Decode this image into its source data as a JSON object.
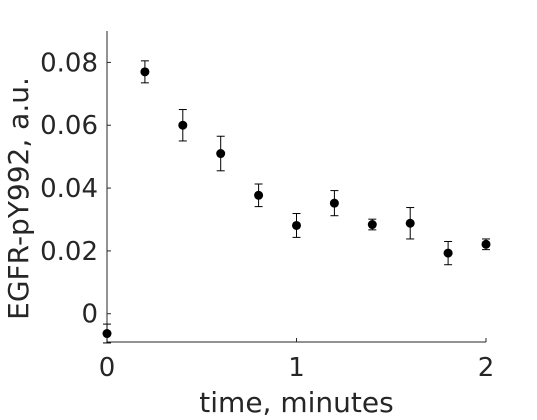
{
  "chart_data": {
    "type": "scatter",
    "title": "",
    "xlabel": "time, minutes",
    "ylabel": "EGFR-pY992, a.u.",
    "xlim": [
      0,
      2
    ],
    "ylim": [
      -0.009,
      0.09
    ],
    "x_ticks": [
      0,
      1,
      2
    ],
    "x_tick_labels": [
      "0",
      "1",
      "2"
    ],
    "y_ticks": [
      0,
      0.02,
      0.04,
      0.06,
      0.08
    ],
    "y_tick_labels": [
      "0",
      "0.02",
      "0.04",
      "0.06",
      "0.08"
    ],
    "grid": false,
    "legend": false,
    "marker_color": "#000000",
    "axis_color": "#262626",
    "series": [
      {
        "x": [
          0,
          0.2,
          0.4,
          0.6,
          0.8,
          1.0,
          1.2,
          1.4,
          1.6,
          1.8,
          2.0
        ],
        "y": [
          -0.0063,
          0.077,
          0.06,
          0.051,
          0.0377,
          0.0281,
          0.0352,
          0.0284,
          0.0288,
          0.0193,
          0.0221
        ],
        "error": [
          0.003,
          0.0035,
          0.005,
          0.0055,
          0.0036,
          0.0038,
          0.004,
          0.0017,
          0.005,
          0.0037,
          0.0017
        ]
      }
    ]
  }
}
